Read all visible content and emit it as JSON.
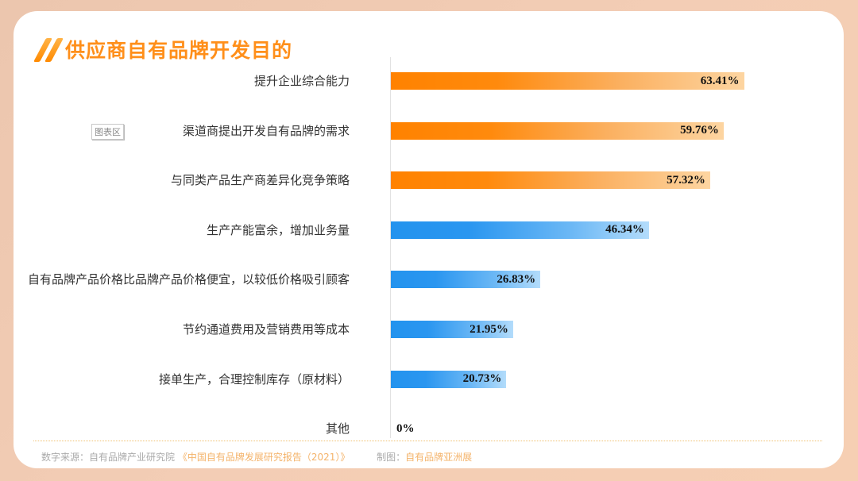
{
  "title": "供应商自有品牌开发目的",
  "chart_area_tag": "图表区",
  "chart_data": {
    "type": "bar",
    "orientation": "horizontal",
    "title": "供应商自有品牌开发目的",
    "xlabel": "",
    "ylabel": "",
    "value_suffix": "%",
    "xlim": [
      0,
      100
    ],
    "grid": false,
    "legend": null,
    "categories": [
      "提升企业综合能力",
      "渠道商提出开发自有品牌的需求",
      "与同类产品生产商差异化竞争策略",
      "生产产能富余，增加业务量",
      "自有品牌产品价格比品牌产品价格便宜，以较低价格吸引顾客",
      "节约通道费用及营销费用等成本",
      "接单生产，合理控制库存（原材料）",
      "其他"
    ],
    "values": [
      63.41,
      59.76,
      57.32,
      46.34,
      26.83,
      21.95,
      20.73,
      0
    ],
    "value_labels": [
      "63.41%",
      "59.76%",
      "57.32%",
      "46.34%",
      "26.83%",
      "21.95%",
      "20.73%",
      "0%"
    ],
    "bar_colors": [
      "orange",
      "orange",
      "orange",
      "blue",
      "blue",
      "blue",
      "blue",
      "none"
    ],
    "colors": {
      "orange": "#ff8200",
      "blue": "#2393ee"
    }
  },
  "footer": {
    "source_label": "数字来源：",
    "source_org": "自有品牌产业研究院",
    "source_report": "《中国自有品牌发展研究报告（2021）》",
    "made_by_label": "制图：",
    "made_by": "自有品牌亚洲展"
  }
}
